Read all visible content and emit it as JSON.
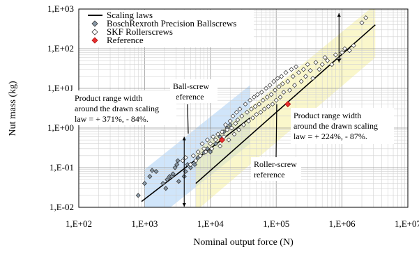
{
  "chart_data": {
    "type": "scatter",
    "xlabel": "Nominal output force (N)",
    "ylabel": "Nut mass (kg)",
    "x_scale": "log",
    "y_scale": "log",
    "xlim": [
      100,
      10000000
    ],
    "ylim": [
      0.01,
      1000
    ],
    "x_ticks": [
      "1,E+02",
      "1,E+03",
      "1,E+04",
      "1,E+05",
      "1,E+06",
      "1,E+07"
    ],
    "y_ticks": [
      "1,E-02",
      "1,E-01",
      "1,E+00",
      "1,E+01",
      "1,E+02",
      "1,E+03"
    ],
    "grid": true,
    "legend_position": "top-left",
    "legend": [
      {
        "label": "Scaling laws",
        "marker": "line"
      },
      {
        "label": "BoschRexroth Precision Ballscrews",
        "marker": "diamond-filled-gray"
      },
      {
        "label": "SKF Rollerscrews",
        "marker": "diamond-open"
      },
      {
        "label": "Reference",
        "marker": "diamond-red"
      }
    ],
    "colors": {
      "ballscrew_band": "#a9d0f5",
      "rollerscrew_band": "#f5f0a0",
      "reference": "#e83030",
      "ballscrew_marker": "#8a9aa8"
    },
    "scaling_laws": [
      {
        "name": "Ball-screw",
        "x": [
          900,
          40000
        ],
        "y": [
          0.014,
          1.8
        ]
      },
      {
        "name": "Roller-screw",
        "x": [
          6000,
          3200000
        ],
        "y": [
          0.04,
          400
        ]
      }
    ],
    "bands": [
      {
        "name": "Ball-screw range",
        "x": [
          1000,
          40000
        ],
        "y_low": [
          0.003,
          0.4
        ],
        "y_high": [
          0.09,
          12
        ]
      },
      {
        "name": "Roller-screw range",
        "x": [
          6000,
          3200000
        ],
        "y_low": [
          0.008,
          60
        ],
        "y_high": [
          0.25,
          1300
        ]
      }
    ],
    "reference_points": [
      {
        "name": "Ball-screw reference",
        "x": 15000,
        "y": 0.5
      },
      {
        "name": "Roller-screw reference",
        "x": 150000,
        "y": 4
      }
    ],
    "series": [
      {
        "name": "BoschRexroth Precision Ballscrews",
        "points": [
          [
            800,
            0.02
          ],
          [
            1000,
            0.04
          ],
          [
            1200,
            0.06
          ],
          [
            1300,
            0.085
          ],
          [
            1500,
            0.08
          ],
          [
            1900,
            0.04
          ],
          [
            2100,
            0.03
          ],
          [
            2200,
            0.05
          ],
          [
            2400,
            0.06
          ],
          [
            2600,
            0.06
          ],
          [
            2700,
            0.07
          ],
          [
            2900,
            0.1
          ],
          [
            3100,
            0.12
          ],
          [
            3200,
            0.15
          ],
          [
            3300,
            0.045
          ],
          [
            4000,
            0.06
          ],
          [
            4200,
            0.08
          ],
          [
            4500,
            0.12
          ],
          [
            5000,
            0.1
          ],
          [
            5800,
            0.12
          ],
          [
            6500,
            0.18
          ],
          [
            7000,
            0.2
          ],
          [
            8000,
            0.24
          ],
          [
            9000,
            0.3
          ],
          [
            10000,
            0.25
          ],
          [
            12000,
            0.4
          ],
          [
            14000,
            0.6
          ],
          [
            16000,
            0.8
          ],
          [
            18000,
            1.0
          ],
          [
            20000,
            1.2
          ]
        ]
      },
      {
        "name": "SKF Rollerscrews",
        "points": [
          [
            3800,
            0.15
          ],
          [
            4200,
            0.18
          ],
          [
            5000,
            0.12
          ],
          [
            5500,
            0.2
          ],
          [
            6000,
            0.15
          ],
          [
            6500,
            0.25
          ],
          [
            7000,
            0.2
          ],
          [
            7500,
            0.4
          ],
          [
            8000,
            0.3
          ],
          [
            8500,
            0.25
          ],
          [
            9000,
            0.5
          ],
          [
            10000,
            0.4
          ],
          [
            10500,
            0.3
          ],
          [
            11000,
            0.6
          ],
          [
            12000,
            0.5
          ],
          [
            13000,
            0.7
          ],
          [
            14000,
            0.35
          ],
          [
            15000,
            0.8
          ],
          [
            16000,
            0.6
          ],
          [
            17000,
            1.2
          ],
          [
            18000,
            0.9
          ],
          [
            19000,
            0.5
          ],
          [
            20000,
            1.5
          ],
          [
            21000,
            1.0
          ],
          [
            22000,
            2.0
          ],
          [
            23000,
            0.7
          ],
          [
            24000,
            1.3
          ],
          [
            25000,
            2.5
          ],
          [
            26000,
            1.6
          ],
          [
            27000,
            0.9
          ],
          [
            28000,
            3.0
          ],
          [
            30000,
            2.0
          ],
          [
            32000,
            1.2
          ],
          [
            34000,
            4.0
          ],
          [
            36000,
            2.5
          ],
          [
            38000,
            1.5
          ],
          [
            40000,
            5.0
          ],
          [
            42000,
            3.0
          ],
          [
            44000,
            1.8
          ],
          [
            46000,
            6.0
          ],
          [
            48000,
            3.5
          ],
          [
            50000,
            2.2
          ],
          [
            52000,
            7.0
          ],
          [
            55000,
            4.0
          ],
          [
            58000,
            2.5
          ],
          [
            60000,
            8.0
          ],
          [
            63000,
            5.0
          ],
          [
            66000,
            3.0
          ],
          [
            70000,
            10.0
          ],
          [
            73000,
            6.0
          ],
          [
            76000,
            3.5
          ],
          [
            80000,
            12.0
          ],
          [
            84000,
            7.0
          ],
          [
            88000,
            4.0
          ],
          [
            92000,
            15.0
          ],
          [
            96000,
            9.0
          ],
          [
            100000,
            5.0
          ],
          [
            105000,
            18.0
          ],
          [
            110000,
            11.0
          ],
          [
            115000,
            6.0
          ],
          [
            120000,
            20.0
          ],
          [
            125000,
            13.0
          ],
          [
            130000,
            8.0
          ],
          [
            140000,
            25.0
          ],
          [
            150000,
            15.0
          ],
          [
            160000,
            9.0
          ],
          [
            170000,
            30.0
          ],
          [
            180000,
            20.0
          ],
          [
            190000,
            12.0
          ],
          [
            200000,
            35.0
          ],
          [
            220000,
            25.0
          ],
          [
            240000,
            15.0
          ],
          [
            260000,
            30.0
          ],
          [
            280000,
            20.0
          ],
          [
            300000,
            40.0
          ],
          [
            330000,
            28.0
          ],
          [
            360000,
            18.0
          ],
          [
            400000,
            45.0
          ],
          [
            450000,
            30.0
          ],
          [
            500000,
            40.0
          ],
          [
            550000,
            60.0
          ],
          [
            600000,
            50.0
          ],
          [
            700000,
            40.0
          ],
          [
            800000,
            70.0
          ],
          [
            900000,
            55.0
          ],
          [
            1000000,
            80.0
          ],
          [
            1100000,
            100.0
          ],
          [
            1300000,
            90.0
          ],
          [
            1500000,
            120.0
          ],
          [
            2000000,
            450.0
          ],
          [
            2300000,
            600.0
          ]
        ]
      }
    ],
    "annotations": [
      {
        "lines": [
          "Ball-screw",
          "reference"
        ]
      },
      {
        "lines": [
          "Product range width",
          "around the drawn scaling",
          "law = + 371%, - 84%."
        ]
      },
      {
        "lines": [
          "Product range width",
          "around the drawn scaling",
          "law = + 224%, - 87%."
        ]
      },
      {
        "lines": [
          "Roller-screw",
          "reference"
        ]
      }
    ]
  }
}
